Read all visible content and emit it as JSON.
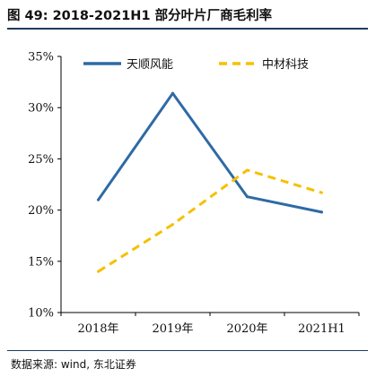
{
  "figure": {
    "title": "图 49:  2018-2021H1 部分叶片厂商毛利率",
    "source": "数据来源: wind, 东北证券"
  },
  "chart_data": {
    "type": "line",
    "categories": [
      "2018年",
      "2019年",
      "2020年",
      "2021H1"
    ],
    "series": [
      {
        "name": "天顺风能",
        "values": [
          21.0,
          31.4,
          21.3,
          19.8
        ],
        "color": "#2E6AA5",
        "style": "solid"
      },
      {
        "name": "中材科技",
        "values": [
          14.0,
          18.6,
          23.9,
          21.7
        ],
        "color": "#F5C000",
        "style": "dashed"
      }
    ],
    "ylim": [
      10,
      35
    ],
    "yticks": [
      10,
      15,
      20,
      25,
      30,
      35
    ],
    "ytick_labels": [
      "10%",
      "15%",
      "20%",
      "25%",
      "30%",
      "35%"
    ],
    "legend_position": "top",
    "grid": false
  }
}
